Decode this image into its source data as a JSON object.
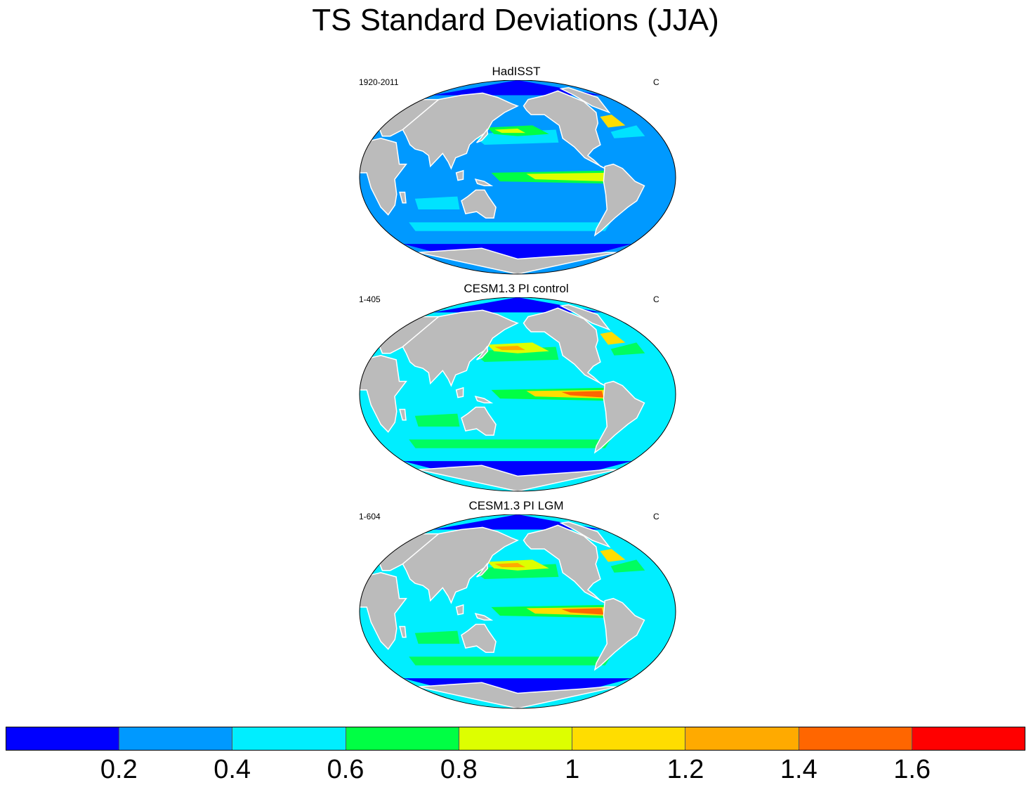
{
  "figure": {
    "title": "TS Standard Deviations (JJA)"
  },
  "panels": [
    {
      "title": "HadISST",
      "left_label": "1920-2011",
      "right_label": "C",
      "enso_strength": 0.55,
      "band_strength": 0.6,
      "pacific_tongue": "weak"
    },
    {
      "title": "CESM1.3 PI control",
      "left_label": "1-405",
      "right_label": "C",
      "enso_strength": 1.0,
      "band_strength": 1.0,
      "pacific_tongue": "strong"
    },
    {
      "title": "CESM1.3 PI LGM",
      "left_label": "1-604",
      "right_label": "C",
      "enso_strength": 0.9,
      "band_strength": 1.0,
      "pacific_tongue": "strong"
    }
  ],
  "colorbar": {
    "colors": [
      "#0000ff",
      "#0099ff",
      "#00eeff",
      "#00ff44",
      "#ddff00",
      "#ffdd00",
      "#ffaa00",
      "#ff6600",
      "#ff0000"
    ],
    "tick_labels": [
      "0.2",
      "0.4",
      "0.6",
      "0.8",
      "1",
      "1.2",
      "1.4",
      "1.6"
    ]
  },
  "colors": {
    "land": "#bbbbbb",
    "coast": "#ffffff",
    "outline": "#000000"
  }
}
